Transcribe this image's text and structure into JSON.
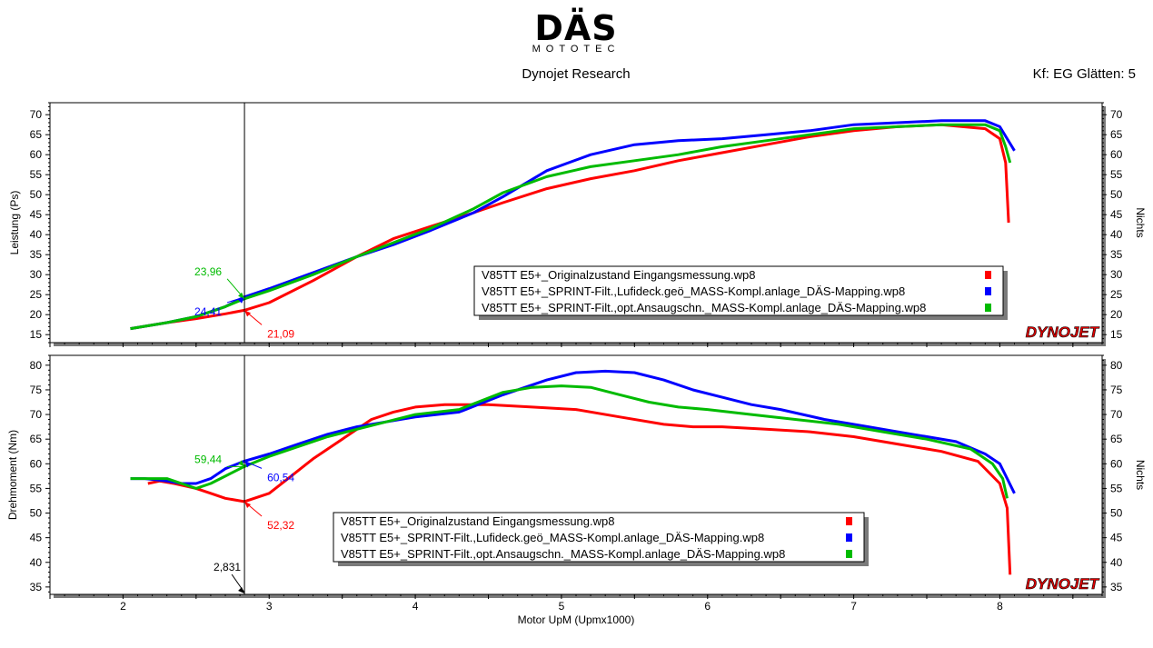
{
  "header": {
    "logo_main": "DÄS",
    "logo_sub": "MOTOTEC",
    "subtitle": "Dynojet Research",
    "smoothing": "Kf: EG Glätten: 5"
  },
  "brand": {
    "dynojet": "DYNOJET"
  },
  "colors": {
    "series1": "#ff0000",
    "series2": "#0000ff",
    "series3": "#00bb00",
    "cursor": "#000000"
  },
  "chart_data": [
    {
      "type": "line",
      "ylabel": "Leistung (Ps)",
      "ylabel_right": "Nichts",
      "xlim": [
        1.5,
        8.7
      ],
      "ylim": [
        13,
        73
      ],
      "yticks": [
        15,
        20,
        25,
        30,
        35,
        40,
        45,
        50,
        55,
        60,
        65,
        70
      ],
      "grid": false,
      "legend_position": "lower-right",
      "cursor": {
        "x": 2.831,
        "label": "2,831"
      },
      "cursor_values": [
        {
          "series": 0,
          "label": "21,09",
          "y": 21.09
        },
        {
          "series": 1,
          "label": "24,41",
          "y": 24.41
        },
        {
          "series": 2,
          "label": "23,96",
          "y": 23.96
        }
      ],
      "series": [
        {
          "name": "V85TT E5+_Originalzustand Eingangsmessung.wp8",
          "x": [
            2.05,
            2.3,
            2.5,
            2.7,
            2.83,
            3.0,
            3.3,
            3.6,
            3.85,
            4.1,
            4.4,
            4.6,
            4.9,
            5.2,
            5.5,
            5.8,
            6.1,
            6.4,
            6.7,
            7.0,
            7.3,
            7.6,
            7.9,
            8.0,
            8.04,
            8.06
          ],
          "y": [
            16.5,
            18.0,
            19.0,
            20.2,
            21.09,
            23.0,
            28.5,
            34.5,
            39.0,
            42.0,
            45.5,
            48.0,
            51.5,
            54.0,
            56.0,
            58.5,
            60.5,
            62.5,
            64.5,
            66.0,
            67.0,
            67.5,
            66.5,
            64.0,
            58.0,
            43.0
          ]
        },
        {
          "name": "V85TT E5+_SPRINT-Filt.,Lufideck.geö_MASS-Kompl.anlage_DÄS-Mapping.wp8",
          "x": [
            2.05,
            2.3,
            2.5,
            2.7,
            2.83,
            3.0,
            3.3,
            3.6,
            3.85,
            4.1,
            4.4,
            4.6,
            4.9,
            5.2,
            5.5,
            5.8,
            6.1,
            6.4,
            6.7,
            7.0,
            7.3,
            7.6,
            7.9,
            8.0,
            8.05,
            8.1
          ],
          "y": [
            16.5,
            18.0,
            19.5,
            22.0,
            24.41,
            26.5,
            30.5,
            34.5,
            37.5,
            41.0,
            45.5,
            49.5,
            56.0,
            60.0,
            62.5,
            63.5,
            64.0,
            65.0,
            66.0,
            67.5,
            68.0,
            68.5,
            68.5,
            67.0,
            64.0,
            61.0
          ]
        },
        {
          "name": "V85TT E5+_SPRINT-Filt.,opt.Ansaugschn._MASS-Kompl.anlage_DÄS-Mapping.wp8",
          "x": [
            2.05,
            2.3,
            2.5,
            2.7,
            2.83,
            3.0,
            3.3,
            3.6,
            3.85,
            4.1,
            4.4,
            4.6,
            4.9,
            5.2,
            5.5,
            5.8,
            6.1,
            6.4,
            6.7,
            7.0,
            7.3,
            7.6,
            7.9,
            8.0,
            8.04,
            8.07
          ],
          "y": [
            16.5,
            18.0,
            19.5,
            22.0,
            23.96,
            26.0,
            30.0,
            34.5,
            38.0,
            41.5,
            46.5,
            50.5,
            54.5,
            57.0,
            58.5,
            60.0,
            62.0,
            63.5,
            65.0,
            66.5,
            67.0,
            67.5,
            67.5,
            66.0,
            62.0,
            58.0
          ]
        }
      ]
    },
    {
      "type": "line",
      "ylabel": "Drehmoment (Nm)",
      "ylabel_right": "Nichts",
      "xlabel": "Motor UpM (Upmx1000)",
      "xlim": [
        1.5,
        8.7
      ],
      "ylim": [
        33.5,
        82
      ],
      "yticks": [
        35,
        40,
        45,
        50,
        55,
        60,
        65,
        70,
        75,
        80
      ],
      "xticks": [
        2,
        3,
        4,
        5,
        6,
        7,
        8
      ],
      "grid": false,
      "legend_position": "bottom-center",
      "cursor": {
        "x": 2.831,
        "label": "2,831"
      },
      "cursor_values": [
        {
          "series": 0,
          "label": "52,32",
          "y": 52.32
        },
        {
          "series": 1,
          "label": "60,54",
          "y": 60.54
        },
        {
          "series": 2,
          "label": "59,44",
          "y": 59.44
        }
      ],
      "series": [
        {
          "name": "V85TT E5+_Originalzustand Eingangsmessung.wp8",
          "x": [
            2.17,
            2.25,
            2.35,
            2.5,
            2.6,
            2.7,
            2.83,
            3.0,
            3.15,
            3.3,
            3.5,
            3.7,
            3.85,
            4.0,
            4.2,
            4.5,
            4.8,
            5.1,
            5.4,
            5.7,
            5.9,
            6.1,
            6.4,
            6.7,
            7.0,
            7.3,
            7.6,
            7.85,
            8.0,
            8.05,
            8.07
          ],
          "y": [
            56.0,
            56.5,
            56.0,
            55.0,
            54.0,
            53.0,
            52.32,
            54.0,
            57.5,
            61.0,
            65.0,
            69.0,
            70.5,
            71.5,
            72.0,
            72.0,
            71.5,
            71.0,
            69.5,
            68.0,
            67.5,
            67.5,
            67.0,
            66.5,
            65.5,
            64.0,
            62.5,
            60.5,
            56.0,
            51.0,
            37.5
          ]
        },
        {
          "name": "V85TT E5+_SPRINT-Filt.,Lufideck.geö_MASS-Kompl.anlage_DÄS-Mapping.wp8",
          "x": [
            2.05,
            2.15,
            2.3,
            2.4,
            2.5,
            2.6,
            2.7,
            2.83,
            3.0,
            3.2,
            3.4,
            3.6,
            3.8,
            4.0,
            4.3,
            4.6,
            4.9,
            5.1,
            5.3,
            5.5,
            5.7,
            5.9,
            6.1,
            6.3,
            6.5,
            6.8,
            7.1,
            7.4,
            7.7,
            7.9,
            8.0,
            8.05,
            8.1
          ],
          "y": [
            57.0,
            57.0,
            56.5,
            56.0,
            56.0,
            57.0,
            59.0,
            60.54,
            62.0,
            64.0,
            66.0,
            67.5,
            68.5,
            69.5,
            70.5,
            74.0,
            77.0,
            78.5,
            78.8,
            78.5,
            77.0,
            75.0,
            73.5,
            72.0,
            71.0,
            69.0,
            67.5,
            66.0,
            64.5,
            62.0,
            60.0,
            57.0,
            54.0
          ]
        },
        {
          "name": "V85TT E5+_SPRINT-Filt.,opt.Ansaugschn._MASS-Kompl.anlage_DÄS-Mapping.wp8",
          "x": [
            2.05,
            2.15,
            2.3,
            2.4,
            2.5,
            2.6,
            2.7,
            2.83,
            3.0,
            3.2,
            3.4,
            3.6,
            3.8,
            4.0,
            4.3,
            4.6,
            4.8,
            5.0,
            5.2,
            5.4,
            5.6,
            5.8,
            6.0,
            6.3,
            6.6,
            6.9,
            7.2,
            7.5,
            7.8,
            7.95,
            8.02,
            8.05
          ],
          "y": [
            57.0,
            57.0,
            57.0,
            56.0,
            55.0,
            56.0,
            57.5,
            59.44,
            61.5,
            63.5,
            65.5,
            67.0,
            68.5,
            70.0,
            71.0,
            74.5,
            75.5,
            75.8,
            75.5,
            74.0,
            72.5,
            71.5,
            71.0,
            70.0,
            69.0,
            68.0,
            66.5,
            65.0,
            63.0,
            60.0,
            57.0,
            53.0
          ]
        }
      ]
    }
  ]
}
